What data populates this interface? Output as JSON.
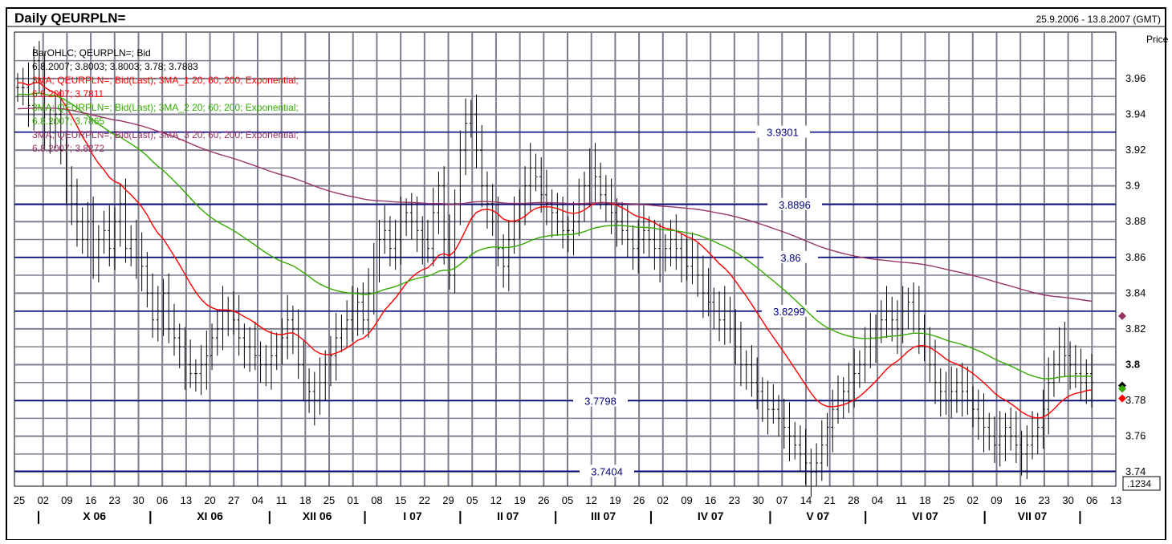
{
  "header": {
    "title": "Daily QEURPLN=",
    "date_range": "25.9.2006 - 13.8.2007 (GMT)",
    "price_label": "Price",
    "corner_value": ".1234"
  },
  "legend": {
    "bar_title": "BarOHLC; QEURPLN=; Bid",
    "bar_values": "6.8.2007; 3.8003; 3.8003; 3.78; 3.7883",
    "ma1_title": "3MA; QEURPLN=; Bid(Last); 3MA_1 20; 60; 200; Exponential;",
    "ma1_values": "6.8.2007; 3.7811",
    "ma2_title": "3MA; QEURPLN=; Bid(Last); 3MA_2 20; 60; 200; Exponential;",
    "ma2_values": "6.8.2007; 3.7865",
    "ma3_title": "3MA; QEURPLN=; Bid(Last); 3MA_3 20; 60; 200; Exponential;",
    "ma3_values": "6.8.2007; 3.8272"
  },
  "colors": {
    "bars": "#000000",
    "ma1": "#ff0000",
    "ma2": "#33aa00",
    "ma3": "#993366",
    "hlines": "#000080",
    "grid": "#7f7f8f"
  },
  "chart_data": {
    "type": "ohlc_bar",
    "title": "Daily QEURPLN=",
    "x_axis": {
      "day_ticks": [
        "25",
        "02",
        "09",
        "16",
        "23",
        "30",
        "06",
        "13",
        "20",
        "27",
        "04",
        "11",
        "18",
        "25",
        "01",
        "08",
        "15",
        "22",
        "29",
        "05",
        "12",
        "19",
        "26",
        "05",
        "12",
        "19",
        "26",
        "02",
        "09",
        "16",
        "23",
        "30",
        "07",
        "14",
        "21",
        "28",
        "04",
        "11",
        "18",
        "25",
        "02",
        "09",
        "16",
        "23",
        "30",
        "06",
        "13"
      ],
      "months": [
        "X 06",
        "XI 06",
        "XII 06",
        "I 07",
        "II 07",
        "III 07",
        "IV 07",
        "V 07",
        "VI 07",
        "VII 07"
      ]
    },
    "y_axis": {
      "ticks": [
        "3.74",
        "3.76",
        "3.78",
        "3.8",
        "3.82",
        "3.84",
        "3.86",
        "3.88",
        "3.9",
        "3.92",
        "3.94",
        "3.96"
      ],
      "range": [
        3.732,
        3.986
      ],
      "grid": true
    },
    "hlines": [
      3.9301,
      3.8896,
      3.86,
      3.8299,
      3.7798,
      3.7404
    ],
    "hline_labels": [
      "3.9301",
      "3.8896",
      "3.86",
      "3.8299",
      "3.7798",
      "3.7404"
    ],
    "last_markers": {
      "ma3": 3.8272,
      "ma2": 3.7865,
      "bar": 3.7883,
      "ma1": 3.7811
    },
    "bars_close": [
      3.955,
      3.955,
      3.945,
      3.97,
      3.96,
      3.93,
      3.935,
      3.94,
      3.92,
      3.9,
      3.89,
      3.88,
      3.87,
      3.88,
      3.86,
      3.87,
      3.875,
      3.865,
      3.88,
      3.89,
      3.865,
      3.87,
      3.86,
      3.855,
      3.84,
      3.825,
      3.83,
      3.84,
      3.82,
      3.815,
      3.81,
      3.8,
      3.795,
      3.795,
      3.8,
      3.805,
      3.815,
      3.82,
      3.83,
      3.83,
      3.825,
      3.815,
      3.81,
      3.81,
      3.805,
      3.8,
      3.8,
      3.805,
      3.81,
      3.815,
      3.825,
      3.82,
      3.8,
      3.79,
      3.785,
      3.78,
      3.79,
      3.8,
      3.805,
      3.815,
      3.82,
      3.825,
      3.83,
      3.835,
      3.825,
      3.84,
      3.86,
      3.87,
      3.875,
      3.865,
      3.87,
      3.88,
      3.885,
      3.88,
      3.875,
      3.87,
      3.865,
      3.885,
      3.9,
      3.87,
      3.85,
      3.89,
      3.92,
      3.935,
      3.94,
      3.92,
      3.9,
      3.89,
      3.88,
      3.865,
      3.855,
      3.87,
      3.88,
      3.89,
      3.9,
      3.91,
      3.905,
      3.895,
      3.89,
      3.885,
      3.88,
      3.875,
      3.875,
      3.88,
      3.89,
      3.9,
      3.91,
      3.905,
      3.895,
      3.89,
      3.885,
      3.88,
      3.875,
      3.87,
      3.865,
      3.87,
      3.875,
      3.87,
      3.865,
      3.86,
      3.865,
      3.87,
      3.865,
      3.86,
      3.855,
      3.86,
      3.85,
      3.84,
      3.835,
      3.83,
      3.825,
      3.83,
      3.82,
      3.81,
      3.8,
      3.8,
      3.79,
      3.785,
      3.78,
      3.775,
      3.775,
      3.77,
      3.765,
      3.76,
      3.755,
      3.75,
      3.745,
      3.74,
      3.745,
      3.755,
      3.765,
      3.775,
      3.78,
      3.785,
      3.79,
      3.795,
      3.8,
      3.81,
      3.815,
      3.82,
      3.825,
      3.83,
      3.825,
      3.82,
      3.83,
      3.835,
      3.83,
      3.82,
      3.81,
      3.8,
      3.79,
      3.785,
      3.78,
      3.785,
      3.79,
      3.785,
      3.78,
      3.775,
      3.77,
      3.765,
      3.76,
      3.755,
      3.76,
      3.765,
      3.76,
      3.755,
      3.75,
      3.755,
      3.76,
      3.765,
      3.775,
      3.79,
      3.8,
      3.81,
      3.805,
      3.8,
      3.795,
      3.79,
      3.795,
      3.79
    ],
    "series": [
      {
        "name": "3MA_1",
        "start": 3.958,
        "end": 3.7811
      },
      {
        "name": "3MA_2",
        "start": 3.951,
        "end": 3.7865
      },
      {
        "name": "3MA_3",
        "start": 3.943,
        "end": 3.8272
      }
    ]
  }
}
